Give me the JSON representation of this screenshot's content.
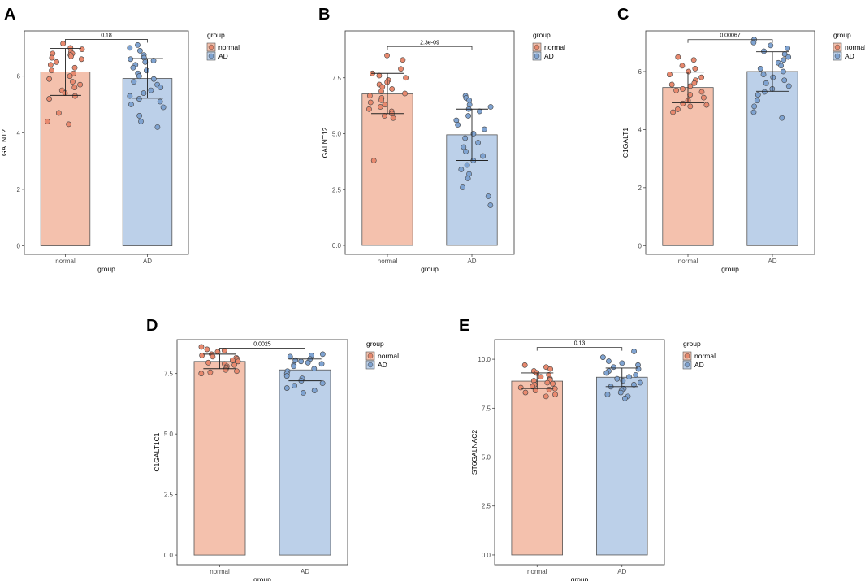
{
  "colors": {
    "normal_fill": "#f4c1ad",
    "normal_point": "#e8896e",
    "ad_fill": "#bcd0e9",
    "ad_point": "#7fa3d1",
    "outline": "#555555",
    "point_stroke": "#444444"
  },
  "chart_data": [
    {
      "type": "bar",
      "panel": "A",
      "categories": [
        "normal",
        "AD"
      ],
      "values": [
        6.15,
        5.92
      ],
      "error": [
        [
          5.32,
          6.98
        ],
        [
          5.22,
          6.62
        ]
      ],
      "xlabel": "group",
      "ylabel": "GALNT2",
      "ylim": [
        -0.3,
        7.6
      ],
      "yticks": [
        0,
        2,
        4,
        6
      ],
      "ytick_labels": [
        "0",
        "2",
        "4",
        "6"
      ],
      "pvalue": "0.18",
      "sig_y": 7.3,
      "legend": {
        "title": "group",
        "entries": [
          "normal",
          "AD"
        ],
        "position": "right"
      },
      "points": [
        [
          7.15,
          7.0,
          6.95,
          6.85,
          6.8,
          6.8,
          6.75,
          6.7,
          6.65,
          6.6,
          6.5,
          6.4,
          6.3,
          6.2,
          6.1,
          6.0,
          5.9,
          5.8,
          5.7,
          5.6,
          5.5,
          5.4,
          5.3,
          5.2,
          4.7,
          4.4,
          4.3
        ],
        [
          7.1,
          7.0,
          6.9,
          6.75,
          6.65,
          6.6,
          6.55,
          6.5,
          6.4,
          6.3,
          6.2,
          6.1,
          6.0,
          5.9,
          5.8,
          5.7,
          5.6,
          5.5,
          5.4,
          5.3,
          5.2,
          5.1,
          5.0,
          4.9,
          4.6,
          4.4,
          4.2
        ]
      ]
    },
    {
      "type": "bar",
      "panel": "B",
      "categories": [
        "normal",
        "AD"
      ],
      "values": [
        6.78,
        4.95
      ],
      "error": [
        [
          5.9,
          7.7
        ],
        [
          3.8,
          6.1
        ]
      ],
      "xlabel": "group",
      "ylabel": "GALNT12",
      "ylim": [
        -0.4,
        9.6
      ],
      "yticks": [
        0,
        2.5,
        5,
        7.5
      ],
      "ytick_labels": [
        "0.0",
        "2.5",
        "5.0",
        "7.5"
      ],
      "pvalue": "2.3e-09",
      "sig_y": 8.9,
      "legend": {
        "title": "group",
        "entries": [
          "normal",
          "AD"
        ],
        "position": "right"
      },
      "points": [
        [
          8.5,
          8.3,
          7.9,
          7.7,
          7.6,
          7.5,
          7.4,
          7.3,
          7.2,
          7.1,
          7.0,
          6.9,
          6.8,
          6.7,
          6.6,
          6.5,
          6.4,
          6.3,
          6.2,
          6.1,
          6.0,
          5.9,
          5.8,
          5.7,
          3.8
        ],
        [
          6.7,
          6.6,
          6.5,
          6.3,
          6.2,
          6.1,
          6.0,
          5.8,
          5.6,
          5.4,
          5.2,
          5.0,
          4.8,
          4.6,
          4.4,
          4.2,
          4.0,
          3.8,
          3.6,
          3.4,
          3.2,
          3.0,
          2.6,
          2.2,
          1.8
        ]
      ]
    },
    {
      "type": "bar",
      "panel": "C",
      "categories": [
        "normal",
        "AD"
      ],
      "values": [
        5.45,
        6.0
      ],
      "error": [
        [
          4.92,
          5.98
        ],
        [
          5.32,
          6.68
        ]
      ],
      "xlabel": "group",
      "ylabel": "C1GALT1",
      "ylim": [
        -0.3,
        7.4
      ],
      "yticks": [
        0,
        2,
        4,
        6
      ],
      "ytick_labels": [
        "0",
        "2",
        "4",
        "6"
      ],
      "pvalue": "0.00067",
      "sig_y": 7.1,
      "legend": {
        "title": "group",
        "entries": [
          "normal",
          "AD"
        ],
        "position": "right"
      },
      "points": [
        [
          6.5,
          6.4,
          6.2,
          6.1,
          6.0,
          5.9,
          5.8,
          5.7,
          5.6,
          5.55,
          5.5,
          5.4,
          5.35,
          5.3,
          5.2,
          5.1,
          5.0,
          4.9,
          4.85,
          4.8,
          4.7,
          4.6
        ],
        [
          7.1,
          7.0,
          6.9,
          6.8,
          6.7,
          6.6,
          6.5,
          6.4,
          6.3,
          6.2,
          6.1,
          6.0,
          5.9,
          5.8,
          5.7,
          5.6,
          5.5,
          5.4,
          5.3,
          5.2,
          5.0,
          4.8,
          4.6,
          4.4
        ]
      ]
    },
    {
      "type": "bar",
      "panel": "D",
      "categories": [
        "normal",
        "AD"
      ],
      "values": [
        8.0,
        7.65
      ],
      "error": [
        [
          7.7,
          8.3
        ],
        [
          7.2,
          8.1
        ]
      ],
      "xlabel": "group",
      "ylabel": "C1GALT1C1",
      "ylim": [
        -0.4,
        8.9
      ],
      "yticks": [
        0,
        2.5,
        5,
        7.5
      ],
      "ytick_labels": [
        "0.0",
        "2.5",
        "5.0",
        "7.5"
      ],
      "pvalue": "0.0025",
      "sig_y": 8.55,
      "legend": {
        "title": "group",
        "entries": [
          "normal",
          "AD"
        ],
        "position": "right"
      },
      "points": [
        [
          8.6,
          8.5,
          8.45,
          8.4,
          8.3,
          8.25,
          8.2,
          8.15,
          8.1,
          8.05,
          8.0,
          7.95,
          7.9,
          7.85,
          7.8,
          7.75,
          7.7,
          7.65,
          7.6,
          7.55,
          7.5
        ],
        [
          8.3,
          8.25,
          8.2,
          8.1,
          8.05,
          8.0,
          7.95,
          7.9,
          7.85,
          7.8,
          7.7,
          7.6,
          7.5,
          7.4,
          7.3,
          7.2,
          7.1,
          7.0,
          6.9,
          6.8,
          6.7
        ]
      ]
    },
    {
      "type": "bar",
      "panel": "E",
      "categories": [
        "normal",
        "AD"
      ],
      "values": [
        8.88,
        9.08
      ],
      "error": [
        [
          8.5,
          9.3
        ],
        [
          8.6,
          9.55
        ]
      ],
      "xlabel": "group",
      "ylabel": "ST6GALNAC2",
      "ylim": [
        -0.5,
        11.0
      ],
      "yticks": [
        0,
        2.5,
        5,
        7.5,
        10
      ],
      "ytick_labels": [
        "0.0",
        "2.5",
        "5.0",
        "7.5",
        "10.0"
      ],
      "pvalue": "0.13",
      "sig_y": 10.6,
      "legend": {
        "title": "group",
        "entries": [
          "normal",
          "AD"
        ],
        "position": "right"
      },
      "points": [
        [
          9.7,
          9.6,
          9.5,
          9.4,
          9.3,
          9.2,
          9.1,
          9.0,
          8.95,
          8.9,
          8.8,
          8.75,
          8.7,
          8.6,
          8.55,
          8.5,
          8.45,
          8.4,
          8.3,
          8.2,
          8.1
        ],
        [
          10.4,
          10.1,
          9.9,
          9.8,
          9.7,
          9.6,
          9.5,
          9.4,
          9.3,
          9.2,
          9.1,
          9.0,
          8.9,
          8.8,
          8.7,
          8.6,
          8.5,
          8.4,
          8.3,
          8.2,
          8.1,
          8.0
        ]
      ]
    }
  ]
}
